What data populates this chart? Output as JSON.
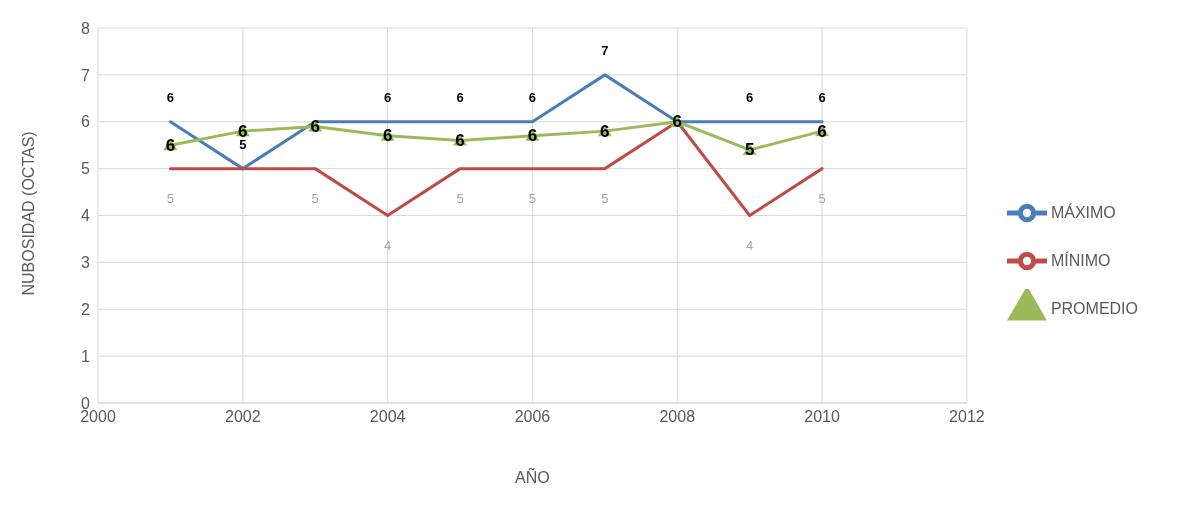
{
  "chart_data": {
    "type": "line",
    "xlabel": "AÑO",
    "ylabel": "NUBOSIDAD (OCTAS)",
    "x": [
      2001,
      2002,
      2003,
      2004,
      2005,
      2006,
      2007,
      2008,
      2009,
      2010
    ],
    "series": [
      {
        "name": "MÁXIMO",
        "color": "#4a7ebb",
        "marker": "none",
        "values": [
          6,
          5,
          6,
          6,
          6,
          6,
          7,
          6,
          6,
          6
        ],
        "value_labels": [
          "6",
          "5",
          null,
          "6",
          "6",
          "6",
          "7",
          null,
          "6",
          "6"
        ]
      },
      {
        "name": "MÍNIMO",
        "color": "#be4b48",
        "marker": "none",
        "values": [
          5,
          5,
          5,
          4,
          5,
          5,
          5,
          6,
          4,
          5
        ],
        "value_labels": [
          "5",
          null,
          "5",
          "4",
          "5",
          "5",
          "5",
          null,
          "4",
          "5"
        ]
      },
      {
        "name": "PROMEDIO",
        "color": "#9bbb59",
        "marker": "triangle",
        "values": [
          5.5,
          5.8,
          5.9,
          5.7,
          5.6,
          5.7,
          5.8,
          6,
          5.4,
          5.8
        ],
        "value_labels": [
          "6",
          "6",
          "6",
          "6",
          "6",
          "6",
          "6",
          "6",
          "5",
          "6"
        ]
      }
    ],
    "xlim": [
      2000,
      2012
    ],
    "xticks": [
      2000,
      2002,
      2004,
      2006,
      2008,
      2010,
      2012
    ],
    "ylim": [
      0,
      8
    ],
    "yticks": [
      0,
      1,
      2,
      3,
      4,
      5,
      6,
      7,
      8
    ],
    "grid": true,
    "legend": "right"
  }
}
